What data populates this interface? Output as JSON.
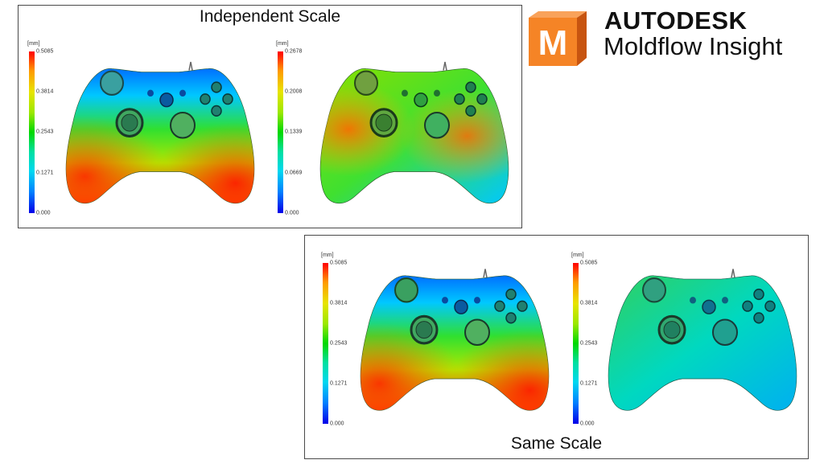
{
  "brand": {
    "name": "AUTODESK",
    "product": "Moldflow Insight",
    "logo_letter": "M",
    "logo_colors": {
      "front": "#f58426",
      "side": "#c75410",
      "top": "#f9a25a"
    }
  },
  "panels": [
    {
      "title": "Independent Scale",
      "legends": [
        {
          "unit": "[mm]",
          "ticks": [
            "0.5085",
            "0.3814",
            "0.2543",
            "0.1271",
            "0.000"
          ]
        },
        {
          "unit": "[mm]",
          "ticks": [
            "0.2678",
            "0.2008",
            "0.1339",
            "0.0669",
            "0.000"
          ]
        }
      ]
    },
    {
      "title": "Same Scale",
      "legends": [
        {
          "unit": "[mm]",
          "ticks": [
            "0.5085",
            "0.3814",
            "0.2543",
            "0.1271",
            "0.000"
          ]
        },
        {
          "unit": "[mm]",
          "ticks": [
            "0.5085",
            "0.3814",
            "0.2543",
            "0.1271",
            "0.000"
          ]
        }
      ]
    }
  ],
  "colormap": [
    "#0000e8",
    "#0080ff",
    "#00d8f0",
    "#00e0a0",
    "#00d800",
    "#9ae800",
    "#e8e400",
    "#ff9a00",
    "#ff0000"
  ]
}
